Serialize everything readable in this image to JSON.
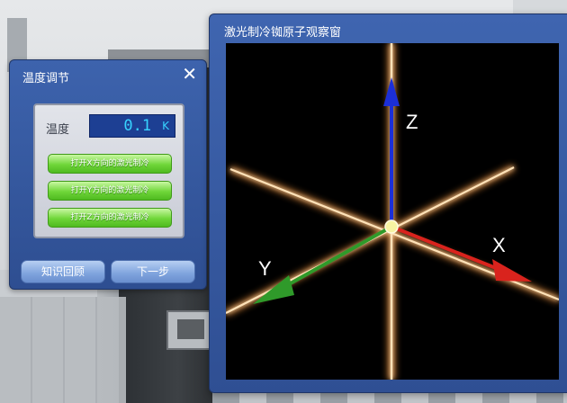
{
  "temperature_panel": {
    "title": "温度调节",
    "close_label": "✕",
    "temperature_label": "温度",
    "temperature_value": "0.1",
    "temperature_unit": "K",
    "laser_buttons": [
      "打开X方向的激光制冷",
      "打开Y方向的激光制冷",
      "打开Z方向的激光制冷"
    ],
    "knowledge_review_label": "知识回顾",
    "next_step_label": "下一步"
  },
  "observation_window": {
    "title": "激光制冷铷原子观察窗",
    "axes": {
      "x_label": "X",
      "y_label": "Y",
      "z_label": "Z",
      "x_color": "#d9231d",
      "y_color": "#2f9a2a",
      "z_color": "#1c2fd8"
    },
    "laser_beam_color": "#ffd9a8",
    "atom_color": "#f7f3a2"
  },
  "colors": {
    "panel_blue": "#3d63ad",
    "button_green": "#6fd639",
    "display_text": "#37d3ff"
  }
}
